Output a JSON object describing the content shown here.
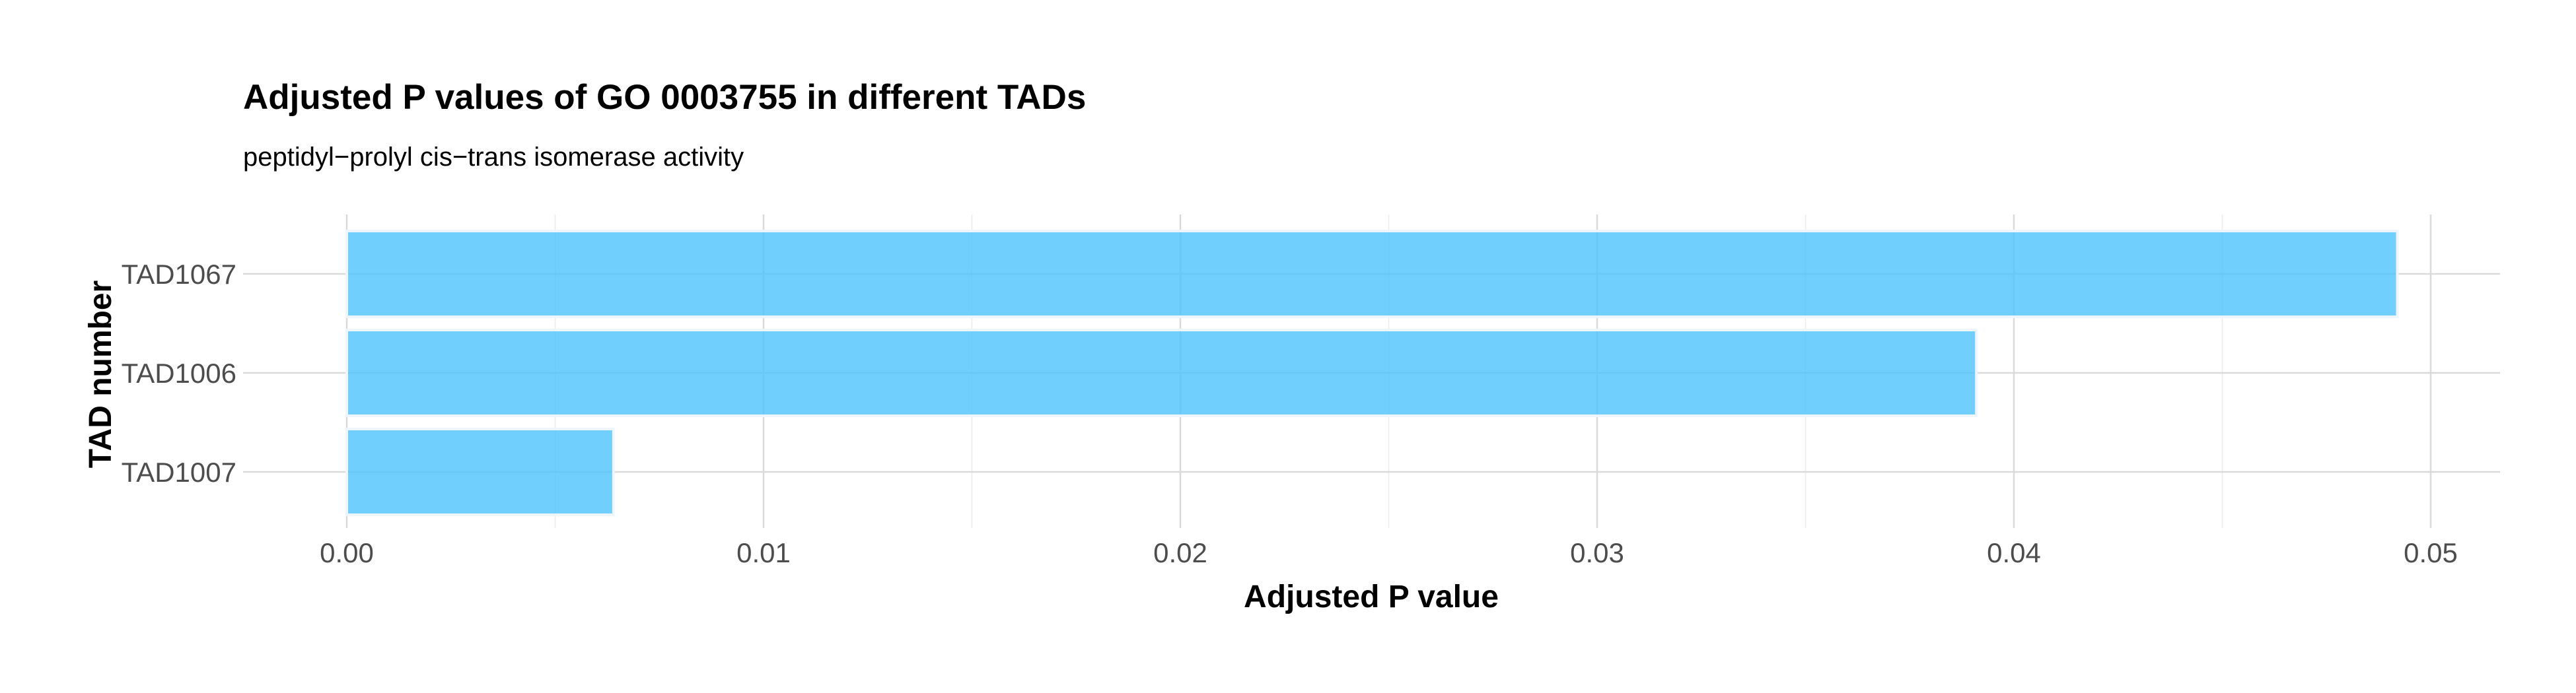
{
  "chart_data": {
    "type": "bar",
    "orientation": "horizontal",
    "title": "Adjusted P values of GO 0003755 in different TADs",
    "subtitle": "peptidyl−prolyl cis−trans isomerase activity",
    "xlabel": "Adjusted P value",
    "ylabel": "TAD number",
    "categories": [
      "TAD1067",
      "TAD1006",
      "TAD1007"
    ],
    "values": [
      0.0492,
      0.0391,
      0.0064
    ],
    "xlim": [
      0,
      0.05
    ],
    "xticks": [
      "0.00",
      "0.01",
      "0.02",
      "0.03",
      "0.04",
      "0.05"
    ],
    "grid": true,
    "legend": "none",
    "colors": {
      "bar_fill": "#4dc3fc",
      "bar_outline": "#eef6fb"
    }
  }
}
